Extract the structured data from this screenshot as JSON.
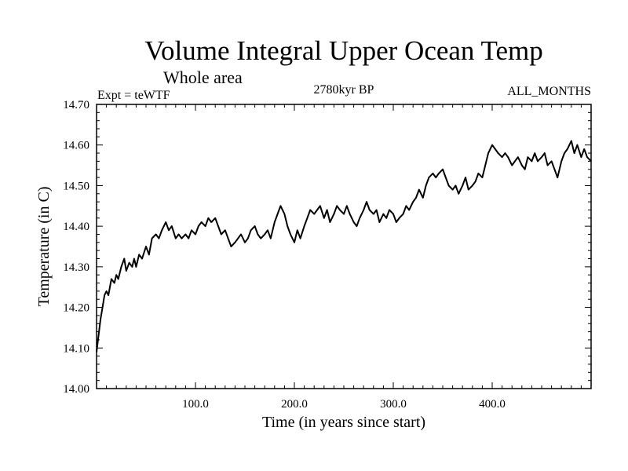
{
  "chart_data": {
    "type": "line",
    "title": "Volume Integral Upper Ocean Temp",
    "subtitle": "Whole area",
    "annotations": {
      "left": "Expt = teWTF",
      "center": "2780kyr BP",
      "right": "ALL_MONTHS"
    },
    "xlabel": "Time (in years since start)",
    "ylabel": "Temperature (in C)",
    "xlim": [
      0,
      500
    ],
    "ylim": [
      14.0,
      14.7
    ],
    "x_ticks": [
      100,
      200,
      300,
      400
    ],
    "x_tick_labels": [
      "100.0",
      "200.0",
      "300.0",
      "400.0"
    ],
    "y_ticks": [
      14.0,
      14.1,
      14.2,
      14.3,
      14.4,
      14.5,
      14.6,
      14.7
    ],
    "y_tick_labels": [
      "14.00",
      "14.10",
      "14.20",
      "14.30",
      "14.40",
      "14.50",
      "14.60",
      "14.70"
    ],
    "grid": false,
    "series": [
      {
        "name": "teWTF",
        "color": "#000000",
        "x": [
          0,
          2,
          4,
          6,
          8,
          10,
          12,
          15,
          18,
          20,
          22,
          25,
          28,
          30,
          33,
          36,
          38,
          40,
          43,
          46,
          50,
          53,
          56,
          60,
          63,
          66,
          70,
          73,
          76,
          80,
          83,
          86,
          90,
          93,
          96,
          100,
          103,
          106,
          110,
          113,
          116,
          120,
          123,
          126,
          130,
          133,
          136,
          140,
          143,
          146,
          150,
          153,
          156,
          160,
          163,
          166,
          170,
          173,
          176,
          180,
          183,
          186,
          190,
          193,
          196,
          200,
          203,
          206,
          210,
          213,
          216,
          220,
          223,
          226,
          230,
          233,
          236,
          240,
          243,
          246,
          250,
          253,
          256,
          260,
          263,
          266,
          270,
          273,
          276,
          280,
          283,
          286,
          290,
          293,
          296,
          300,
          303,
          306,
          310,
          313,
          316,
          320,
          323,
          326,
          330,
          333,
          336,
          340,
          343,
          346,
          350,
          353,
          356,
          360,
          363,
          366,
          370,
          373,
          376,
          380,
          383,
          386,
          390,
          393,
          396,
          400,
          403,
          406,
          410,
          413,
          416,
          420,
          423,
          426,
          430,
          433,
          436,
          440,
          443,
          446,
          450,
          453,
          456,
          460,
          463,
          466,
          470,
          473,
          476,
          480,
          483,
          486,
          490,
          493,
          496,
          500
        ],
        "values": [
          14.09,
          14.13,
          14.17,
          14.2,
          14.23,
          14.24,
          14.23,
          14.27,
          14.26,
          14.28,
          14.27,
          14.3,
          14.32,
          14.29,
          14.31,
          14.3,
          14.32,
          14.3,
          14.33,
          14.32,
          14.35,
          14.33,
          14.37,
          14.38,
          14.37,
          14.39,
          14.41,
          14.39,
          14.4,
          14.37,
          14.38,
          14.37,
          14.38,
          14.37,
          14.39,
          14.38,
          14.4,
          14.41,
          14.4,
          14.42,
          14.41,
          14.42,
          14.4,
          14.38,
          14.39,
          14.37,
          14.35,
          14.36,
          14.37,
          14.38,
          14.36,
          14.37,
          14.39,
          14.4,
          14.38,
          14.37,
          14.38,
          14.39,
          14.37,
          14.41,
          14.43,
          14.45,
          14.43,
          14.4,
          14.38,
          14.36,
          14.39,
          14.37,
          14.4,
          14.42,
          14.44,
          14.43,
          14.44,
          14.45,
          14.42,
          14.44,
          14.41,
          14.43,
          14.45,
          14.44,
          14.43,
          14.45,
          14.43,
          14.41,
          14.4,
          14.42,
          14.44,
          14.46,
          14.44,
          14.43,
          14.44,
          14.41,
          14.43,
          14.42,
          14.44,
          14.43,
          14.41,
          14.42,
          14.43,
          14.45,
          14.44,
          14.46,
          14.47,
          14.49,
          14.47,
          14.5,
          14.52,
          14.53,
          14.52,
          14.53,
          14.54,
          14.52,
          14.5,
          14.49,
          14.5,
          14.48,
          14.5,
          14.52,
          14.49,
          14.5,
          14.51,
          14.53,
          14.52,
          14.55,
          14.58,
          14.6,
          14.59,
          14.58,
          14.57,
          14.58,
          14.57,
          14.55,
          14.56,
          14.57,
          14.55,
          14.54,
          14.57,
          14.56,
          14.58,
          14.56,
          14.57,
          14.58,
          14.55,
          14.56,
          14.54,
          14.52,
          14.56,
          14.58,
          14.59,
          14.61,
          14.58,
          14.6,
          14.57,
          14.59,
          14.57,
          14.56
        ]
      }
    ]
  }
}
